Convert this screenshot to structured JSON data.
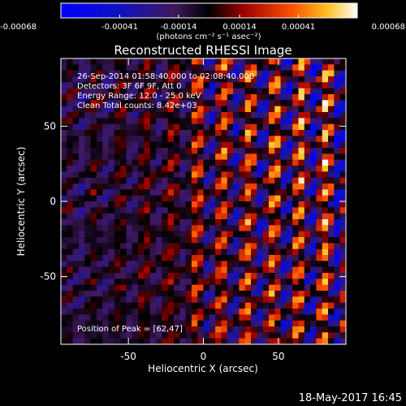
{
  "colorbar": {
    "tick_labels": [
      "-0.00068",
      "-0.00041",
      "-0.00014",
      "0.00014",
      "0.00041",
      "0.00068"
    ],
    "min": -0.00068,
    "max": 0.00068,
    "unit": "(photons cm⁻² s⁻¹ asec⁻²)"
  },
  "chart_data": {
    "type": "heatmap",
    "title": "Reconstructed RHESSI Image",
    "xlabel": "Heliocentric X (arcsec)",
    "ylabel": "Heliocentric Y (arcsec)",
    "xlim": [
      -95,
      95
    ],
    "ylim": [
      -95,
      95
    ],
    "x_ticks": [
      -50,
      0,
      50
    ],
    "y_ticks": [
      50,
      0,
      -50
    ],
    "peak_position": [
      62,
      47
    ],
    "annotations": [
      "26-Sep-2014 01:58:40.000 to 02:08:40.000",
      "Detectors: 3F 6F 9F, Att 0",
      "Energy Range: 12.0 - 25.0 keV",
      "Clean     Total counts: 8.42e+03",
      "Position of Peak = [62,47]"
    ]
  },
  "footer": {
    "timestamp": "18-May-2017 16:45"
  }
}
